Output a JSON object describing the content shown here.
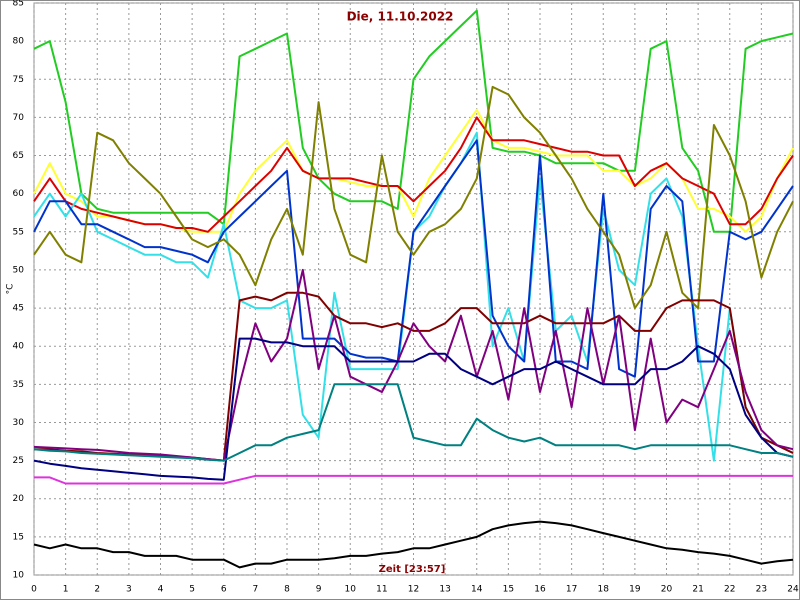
{
  "chart_data": {
    "type": "line",
    "title": "Die, 11.10.2022",
    "xlabel": "Zeit [23:57]",
    "ylabel": "°C",
    "x": [
      0,
      0.5,
      1,
      1.5,
      2,
      2.5,
      3,
      3.5,
      4,
      4.5,
      5,
      5.5,
      6,
      6.5,
      7,
      7.5,
      8,
      8.5,
      9,
      9.5,
      10,
      10.5,
      11,
      11.5,
      12,
      12.5,
      13,
      13.5,
      14,
      14.5,
      15,
      15.5,
      16,
      16.5,
      17,
      17.5,
      18,
      18.5,
      19,
      19.5,
      20,
      20.5,
      21,
      21.5,
      22,
      22.5,
      23,
      23.5,
      24
    ],
    "xlim": [
      0,
      24
    ],
    "xticks": [
      0,
      1,
      2,
      3,
      4,
      5,
      6,
      7,
      8,
      9,
      10,
      11,
      12,
      13,
      14,
      15,
      16,
      17,
      18,
      19,
      20,
      21,
      22,
      23,
      24
    ],
    "ylim": [
      10,
      85
    ],
    "yticks": [
      10,
      15,
      20,
      25,
      30,
      35,
      40,
      45,
      50,
      55,
      60,
      65,
      70,
      75,
      80,
      85
    ],
    "grid": true,
    "series": [
      {
        "color": "#22cc22",
        "values": [
          79,
          80,
          72,
          60,
          58,
          57.5,
          57.5,
          57.5,
          57.5,
          57.5,
          57.5,
          57.5,
          56,
          78,
          79,
          80,
          81,
          66,
          62,
          60,
          59,
          59,
          59,
          58,
          75,
          78,
          80,
          82,
          84,
          66,
          65.5,
          65.5,
          65,
          64,
          64,
          64,
          64,
          63,
          63,
          79,
          80,
          66,
          63,
          55,
          55,
          79,
          80,
          80.5,
          81
        ]
      },
      {
        "color": "#ffff33",
        "values": [
          60,
          64,
          60,
          59,
          57,
          57,
          56.5,
          56,
          56,
          55.5,
          55,
          55,
          55,
          60,
          63,
          65,
          67,
          63,
          62,
          62,
          61.5,
          61,
          61,
          61,
          57,
          62,
          65,
          68,
          71,
          67,
          66,
          66,
          65.5,
          65,
          65,
          65,
          63,
          63,
          61,
          62,
          64,
          62,
          58,
          58,
          57,
          55,
          57,
          62,
          66
        ]
      },
      {
        "color": "#dd0000",
        "values": [
          59,
          62,
          59,
          58,
          57.5,
          57,
          56.5,
          56,
          56,
          55.5,
          55.5,
          55,
          57,
          59,
          61,
          63,
          66,
          63,
          62,
          62,
          62,
          61.5,
          61,
          61,
          59,
          61,
          63,
          66,
          70,
          67,
          67,
          67,
          66.5,
          66,
          65.5,
          65.5,
          65,
          65,
          61,
          63,
          64,
          62,
          61,
          60,
          56,
          56,
          58,
          62,
          65
        ]
      },
      {
        "color": "#33e0e8",
        "values": [
          57,
          60,
          57,
          60,
          55,
          54,
          53,
          52,
          52,
          51,
          51,
          49,
          56,
          46,
          45,
          45,
          46,
          31,
          28,
          47,
          37,
          37,
          37,
          37,
          55,
          57,
          61,
          64,
          68,
          40,
          45,
          38,
          62,
          42,
          44,
          38,
          58,
          50,
          48,
          60,
          62,
          57,
          40,
          25,
          45,
          32,
          28,
          27,
          26
        ]
      },
      {
        "color": "#0033cc",
        "values": [
          55,
          59,
          59,
          56,
          56,
          55,
          54,
          53,
          53,
          52.5,
          52,
          51,
          55,
          57,
          59,
          61,
          63,
          41,
          41,
          41,
          39,
          38.5,
          38.5,
          38,
          55,
          58,
          61,
          64,
          67,
          44,
          40,
          38,
          65,
          38,
          38,
          37,
          60,
          37,
          36,
          58,
          61,
          59,
          38,
          38,
          55,
          54,
          55,
          58,
          61
        ]
      },
      {
        "color": "#808000",
        "values": [
          52,
          55,
          52,
          51,
          68,
          67,
          64,
          62,
          60,
          57,
          54,
          53,
          54,
          52,
          48,
          54,
          58,
          52,
          72,
          58,
          52,
          51,
          65,
          55,
          52,
          55,
          56,
          58,
          62,
          74,
          73,
          70,
          68,
          65,
          62,
          58,
          55,
          52,
          45,
          48,
          55,
          47,
          45,
          69,
          65,
          59,
          49,
          55,
          59
        ]
      },
      {
        "color": "#800000",
        "values": [
          26.5,
          26.5,
          26.3,
          26.2,
          26,
          25.9,
          25.8,
          25.7,
          25.6,
          25.5,
          25.4,
          25.2,
          25,
          46,
          46.5,
          46,
          47,
          47,
          46.5,
          44,
          43,
          43,
          42.5,
          43,
          42,
          42,
          43,
          45,
          45,
          43,
          43,
          43,
          44,
          43,
          43,
          43,
          43,
          44,
          42,
          42,
          45,
          46,
          46,
          46,
          45,
          32,
          28,
          27,
          26
        ]
      },
      {
        "color": "#800080",
        "values": [
          26.8,
          26.7,
          26.6,
          26.5,
          26.4,
          26.2,
          26,
          25.9,
          25.8,
          25.6,
          25.4,
          25.2,
          25,
          35,
          43,
          38,
          41,
          50,
          37,
          44,
          36,
          35,
          34,
          38,
          43,
          40,
          38,
          44,
          36,
          42,
          33,
          45,
          34,
          42,
          32,
          45,
          35,
          44,
          29,
          41,
          30,
          33,
          32,
          37,
          42,
          34,
          29,
          27,
          26.5
        ]
      },
      {
        "color": "#000080",
        "values": [
          25,
          24.6,
          24.3,
          24,
          23.8,
          23.6,
          23.4,
          23.2,
          23,
          22.9,
          22.8,
          22.6,
          22.5,
          41,
          41,
          40.5,
          40.5,
          40,
          40,
          40,
          38,
          38,
          38,
          38,
          38,
          39,
          39,
          37,
          36,
          35,
          36,
          37,
          37,
          38,
          37,
          36,
          35,
          35,
          35,
          37,
          37,
          38,
          40,
          39,
          37,
          31,
          28,
          26,
          25.5
        ]
      },
      {
        "color": "#008080",
        "values": [
          26.5,
          26.3,
          26.2,
          26,
          25.9,
          25.8,
          25.7,
          25.6,
          25.5,
          25.4,
          25.3,
          25.1,
          25,
          26,
          27,
          27,
          28,
          28.5,
          29,
          35,
          35,
          35,
          35,
          35,
          28,
          27.5,
          27,
          27,
          30.5,
          29,
          28,
          27.5,
          28,
          27,
          27,
          27,
          27,
          27,
          26.5,
          27,
          27,
          27,
          27,
          27,
          27,
          26.5,
          26,
          26,
          25.5
        ]
      },
      {
        "color": "#dd33dd",
        "values": [
          22.8,
          22.8,
          22,
          22,
          22,
          22,
          22,
          22,
          22,
          22,
          22,
          22,
          22,
          22.5,
          23,
          23,
          23,
          23,
          23,
          23,
          23,
          23,
          23,
          23,
          23,
          23,
          23,
          23,
          23,
          23,
          23,
          23,
          23,
          23,
          23,
          23,
          23,
          23,
          23,
          23,
          23,
          23,
          23,
          23,
          23,
          23,
          23,
          23,
          23
        ]
      },
      {
        "color": "#000000",
        "values": [
          14,
          13.5,
          14,
          13.5,
          13.5,
          13,
          13,
          12.5,
          12.5,
          12.5,
          12,
          12,
          12,
          11,
          11.5,
          11.5,
          12,
          12,
          12,
          12.2,
          12.5,
          12.5,
          12.8,
          13,
          13.5,
          13.5,
          14,
          14.5,
          15,
          16,
          16.5,
          16.8,
          17,
          16.8,
          16.5,
          16,
          15.5,
          15,
          14.5,
          14,
          13.5,
          13.3,
          13,
          12.8,
          12.5,
          12,
          11.5,
          11.8,
          12
        ]
      }
    ]
  }
}
